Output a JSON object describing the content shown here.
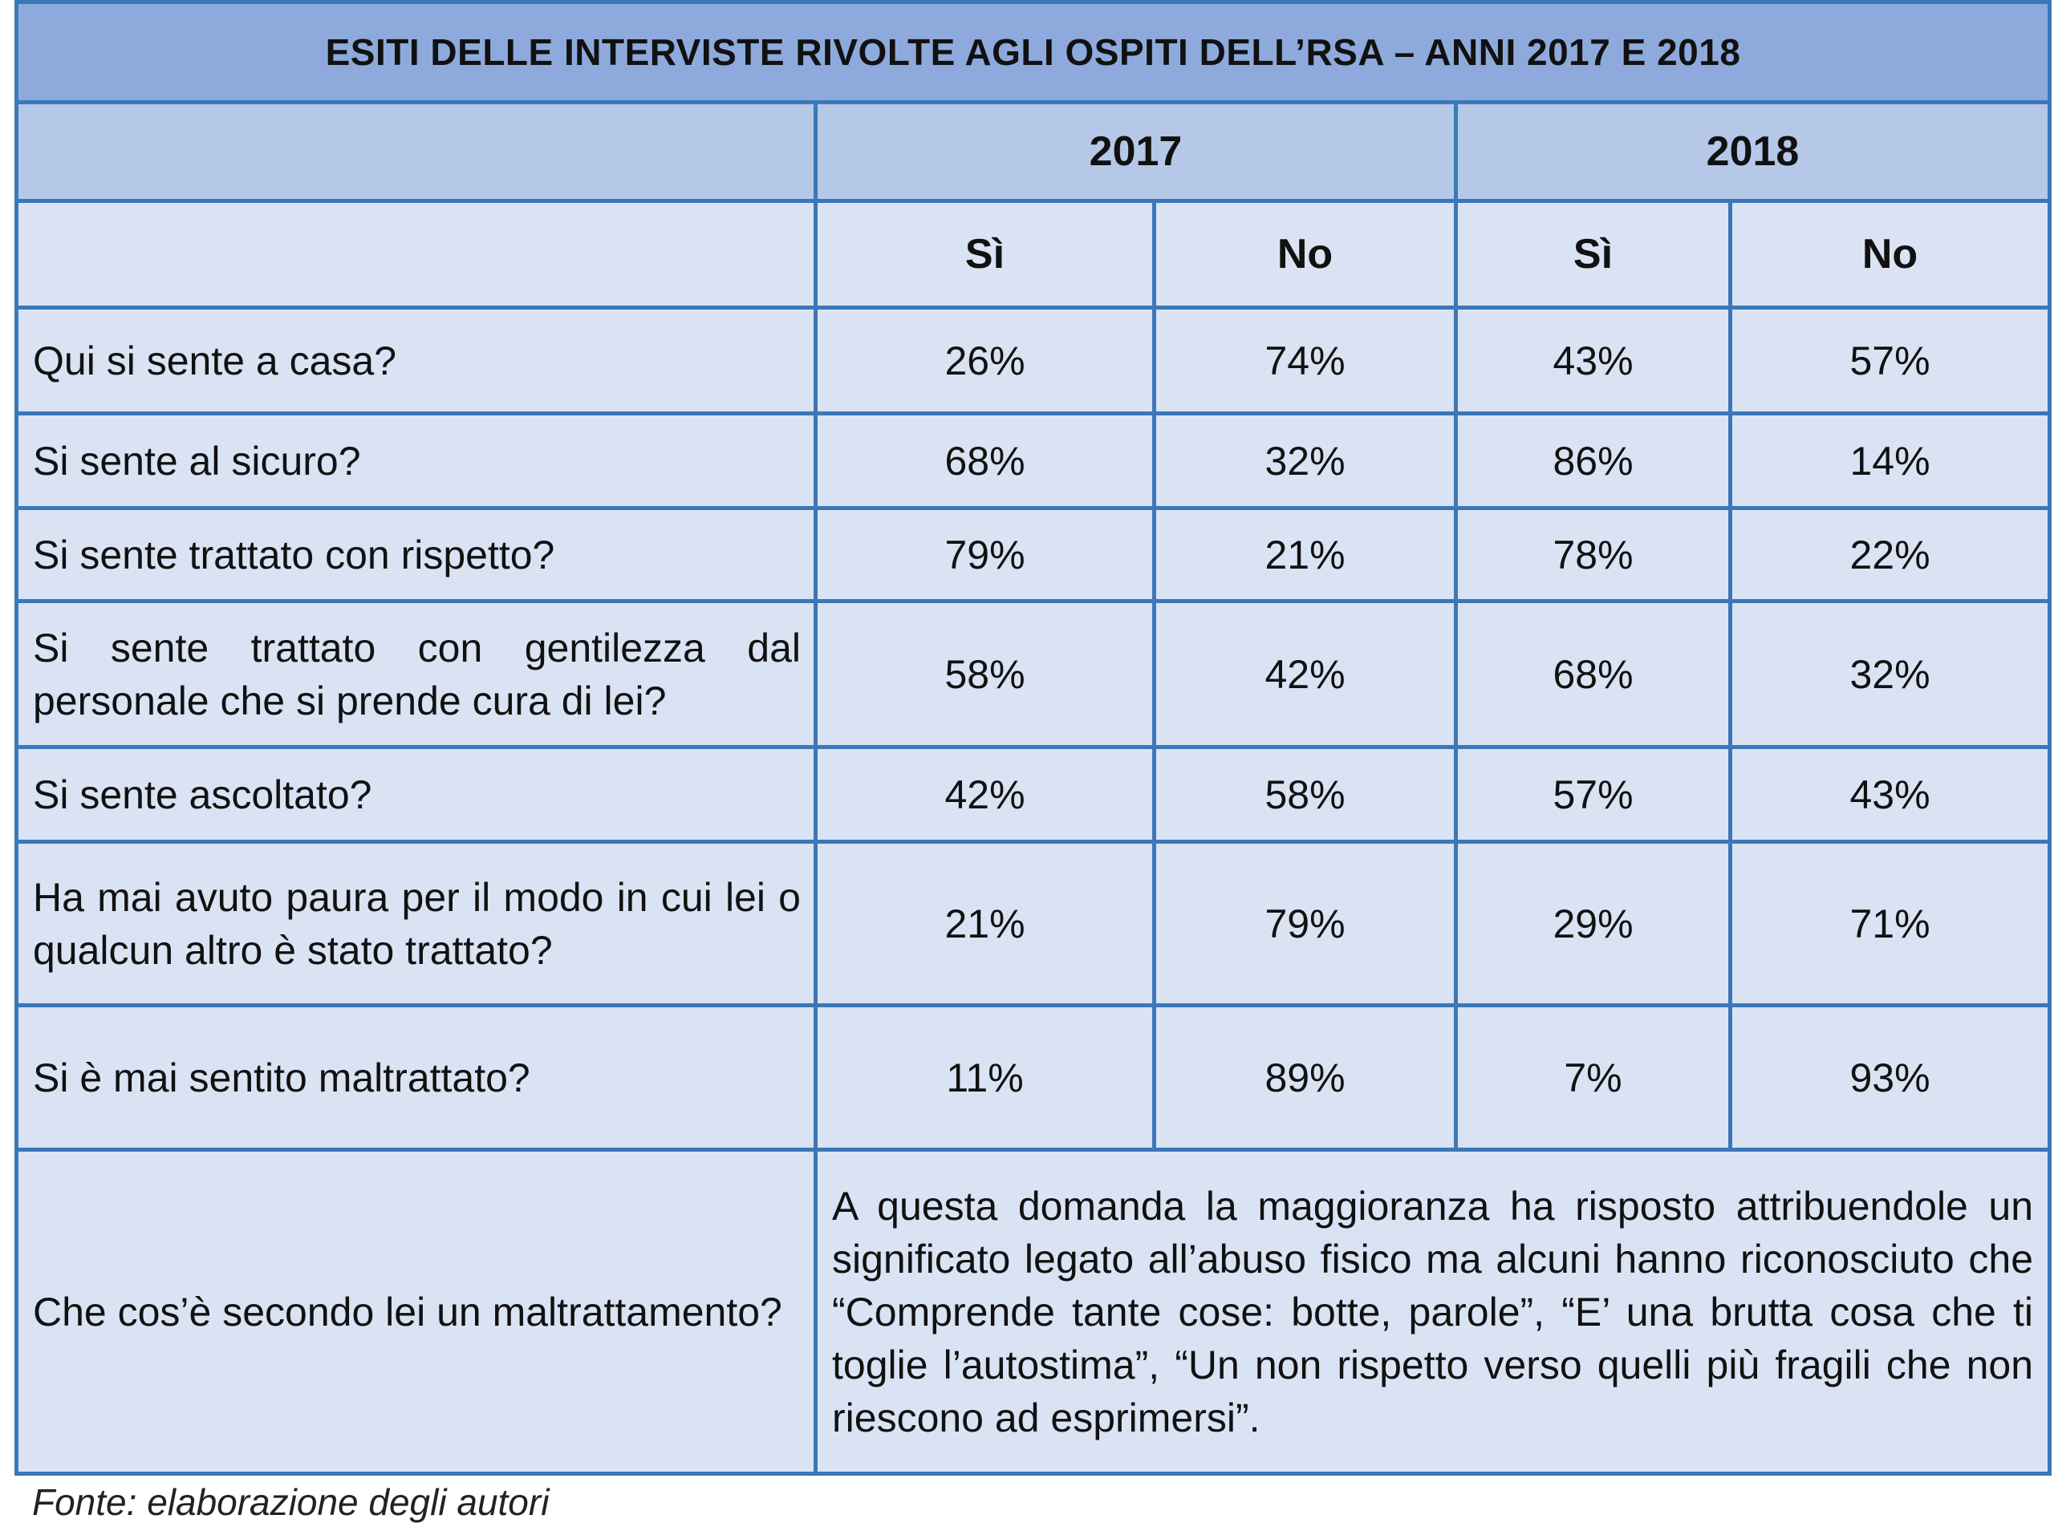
{
  "title": "ESITI DELLE INTERVISTE RIVOLTE AGLI OSPITI DELL’RSA – ANNI 2017 E 2018",
  "years": [
    "2017",
    "2018"
  ],
  "subheaders": [
    "Sì",
    "No",
    "Sì",
    "No"
  ],
  "rows": [
    {
      "question": "Qui si sente a casa?",
      "values": [
        "26%",
        "74%",
        "43%",
        "57%"
      ]
    },
    {
      "question": "Si sente al sicuro?",
      "values": [
        "68%",
        "32%",
        "86%",
        "14%"
      ]
    },
    {
      "question": "Si sente trattato con rispetto?",
      "values": [
        "79%",
        "21%",
        "78%",
        "22%"
      ]
    },
    {
      "question": "Si sente trattato con gentilezza dal personale che si prende cura di lei?",
      "values": [
        "58%",
        "42%",
        "68%",
        "32%"
      ]
    },
    {
      "question": "Si sente ascoltato?",
      "values": [
        "42%",
        "58%",
        "57%",
        "43%"
      ]
    },
    {
      "question": "Ha mai avuto paura per il modo in cui lei o qualcun altro è stato trattato?",
      "values": [
        "21%",
        "79%",
        "29%",
        "71%"
      ]
    },
    {
      "question": "Si è mai sentito maltrattato?",
      "values": [
        "11%",
        "89%",
        "7%",
        "93%"
      ]
    }
  ],
  "final_row": {
    "question": "Che cos’è secondo lei un maltrattamento?",
    "answer": "A questa domanda la maggioranza ha risposto attribuendole un significato legato all’abuso fisico ma alcuni hanno riconosciuto che “Comprende tante cose: botte, parole”, “E’ una brutta cosa che ti toglie l’autostima”, “Un non rispetto verso quelli più fragili che non riescono ad esprimersi”."
  },
  "source": "Fonte: elaborazione degli autori"
}
